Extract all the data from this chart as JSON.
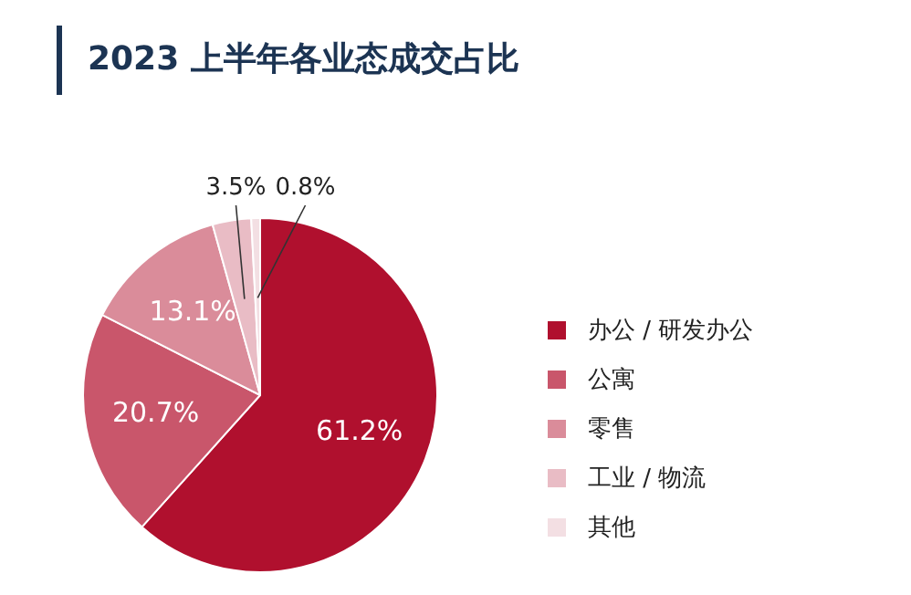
{
  "chart_data": {
    "type": "pie",
    "title": "2023 上半年各业态成交占比",
    "categories": [
      "办公 / 研发办公",
      "公寓",
      "零售",
      "工业 / 物流",
      "其他"
    ],
    "values": [
      61.2,
      20.7,
      13.1,
      3.5,
      0.8
    ],
    "colors": [
      "#b0102e",
      "#c9566b",
      "#da8c9a",
      "#e9bcc5",
      "#f3dfe3"
    ],
    "value_labels": [
      "61.2%",
      "20.7%",
      "13.1%",
      "3.5%",
      "0.8%"
    ],
    "legend": "right"
  }
}
